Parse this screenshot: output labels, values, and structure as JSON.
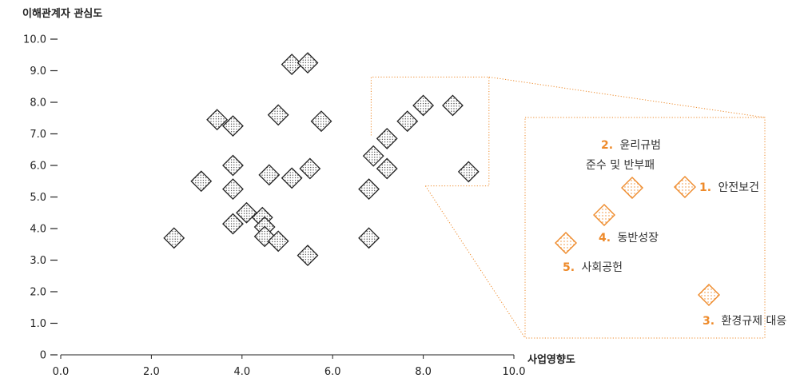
{
  "chart_data": {
    "type": "scatter",
    "ylabel": "이해관계자 관심도",
    "xlabel": "사업영향도",
    "xlim": [
      0,
      10
    ],
    "ylim": [
      0,
      10
    ],
    "x_ticks": [
      "0.0",
      "2.0",
      "4.0",
      "6.0",
      "8.0",
      "10.0"
    ],
    "y_ticks": [
      "0",
      "1.0",
      "2.0",
      "3.0",
      "4.0",
      "5.0",
      "6.0",
      "7.0",
      "8.0",
      "9.0",
      "10.0"
    ],
    "points": [
      {
        "x": 2.5,
        "y": 3.7
      },
      {
        "x": 3.1,
        "y": 5.5
      },
      {
        "x": 3.45,
        "y": 7.45
      },
      {
        "x": 3.8,
        "y": 7.25
      },
      {
        "x": 3.8,
        "y": 6.0
      },
      {
        "x": 3.8,
        "y": 5.25
      },
      {
        "x": 3.8,
        "y": 4.15
      },
      {
        "x": 4.1,
        "y": 4.5
      },
      {
        "x": 4.45,
        "y": 4.35
      },
      {
        "x": 4.5,
        "y": 4.05
      },
      {
        "x": 4.5,
        "y": 3.75
      },
      {
        "x": 4.8,
        "y": 3.6
      },
      {
        "x": 4.6,
        "y": 5.7
      },
      {
        "x": 4.8,
        "y": 7.6
      },
      {
        "x": 5.1,
        "y": 5.6
      },
      {
        "x": 5.1,
        "y": 9.2
      },
      {
        "x": 5.45,
        "y": 9.25
      },
      {
        "x": 5.5,
        "y": 5.9
      },
      {
        "x": 5.75,
        "y": 7.4
      },
      {
        "x": 5.45,
        "y": 3.15
      },
      {
        "x": 6.8,
        "y": 3.7
      },
      {
        "x": 6.8,
        "y": 5.25
      },
      {
        "x": 6.9,
        "y": 6.3
      },
      {
        "x": 7.2,
        "y": 6.85
      },
      {
        "x": 7.2,
        "y": 5.9
      },
      {
        "x": 7.65,
        "y": 7.4
      },
      {
        "x": 8.0,
        "y": 7.9
      },
      {
        "x": 8.65,
        "y": 7.9
      },
      {
        "x": 9.0,
        "y": 5.8
      }
    ],
    "highlight_box": {
      "x": [
        6.85,
        9.45
      ],
      "y": [
        5.35,
        8.8
      ]
    },
    "zoom": {
      "items": [
        {
          "num": "1.",
          "label": "안전보건"
        },
        {
          "num": "2.",
          "label": "윤리규범",
          "label2": "준수 및 반부패"
        },
        {
          "num": "3.",
          "label": "환경규제 대응"
        },
        {
          "num": "4.",
          "label": "동반성장"
        },
        {
          "num": "5.",
          "label": "사회공헌"
        }
      ]
    },
    "colors": {
      "accent": "#ee8a2a",
      "marker_stroke": "#222222",
      "axis": "#222222"
    }
  }
}
